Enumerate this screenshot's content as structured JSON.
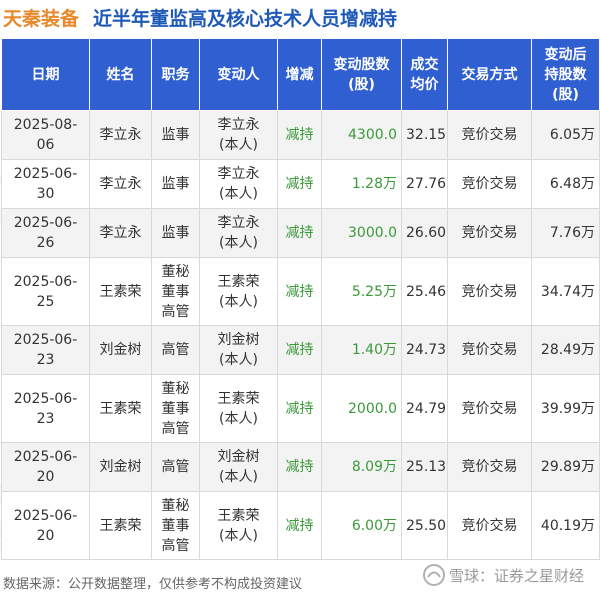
{
  "header": {
    "brand": "天秦装备",
    "title": "近半年董监高及核心技术人员增减持"
  },
  "table": {
    "columns": [
      "日期",
      "姓名",
      "职务",
      "变动人",
      "增减",
      "变动股数\n(股)",
      "成交\n均价",
      "交易方式",
      "变动后\n持股数\n(股)"
    ],
    "rows": [
      {
        "date": "2025-08-06",
        "name": "李立永",
        "position": [
          "监事"
        ],
        "changer": [
          "李立永",
          "(本人)"
        ],
        "direction": "减持",
        "shares": "4300.0",
        "price": "32.15",
        "method": "竞价交易",
        "after": "6.05万"
      },
      {
        "date": "2025-06-30",
        "name": "李立永",
        "position": [
          "监事"
        ],
        "changer": [
          "李立永",
          "(本人)"
        ],
        "direction": "减持",
        "shares": "1.28万",
        "price": "27.76",
        "method": "竞价交易",
        "after": "6.48万"
      },
      {
        "date": "2025-06-26",
        "name": "李立永",
        "position": [
          "监事"
        ],
        "changer": [
          "李立永",
          "(本人)"
        ],
        "direction": "减持",
        "shares": "3000.0",
        "price": "26.60",
        "method": "竞价交易",
        "after": "7.76万"
      },
      {
        "date": "2025-06-25",
        "name": "王素荣",
        "position": [
          "董秘",
          "董事",
          "高管"
        ],
        "changer": [
          "王素荣",
          "(本人)"
        ],
        "direction": "减持",
        "shares": "5.25万",
        "price": "25.46",
        "method": "竞价交易",
        "after": "34.74万"
      },
      {
        "date": "2025-06-23",
        "name": "刘金树",
        "position": [
          "高管"
        ],
        "changer": [
          "刘金树",
          "(本人)"
        ],
        "direction": "减持",
        "shares": "1.40万",
        "price": "24.73",
        "method": "竞价交易",
        "after": "28.49万"
      },
      {
        "date": "2025-06-23",
        "name": "王素荣",
        "position": [
          "董秘",
          "董事",
          "高管"
        ],
        "changer": [
          "王素荣",
          "(本人)"
        ],
        "direction": "减持",
        "shares": "2000.0",
        "price": "24.79",
        "method": "竞价交易",
        "after": "39.99万"
      },
      {
        "date": "2025-06-20",
        "name": "刘金树",
        "position": [
          "高管"
        ],
        "changer": [
          "刘金树",
          "(本人)"
        ],
        "direction": "减持",
        "shares": "8.09万",
        "price": "25.13",
        "method": "竞价交易",
        "after": "29.89万"
      },
      {
        "date": "2025-06-20",
        "name": "王素荣",
        "position": [
          "董秘",
          "董事",
          "高管"
        ],
        "changer": [
          "王素荣",
          "(本人)"
        ],
        "direction": "减持",
        "shares": "6.00万",
        "price": "25.50",
        "method": "竞价交易",
        "after": "40.19万"
      }
    ]
  },
  "footer": {
    "source": "数据来源：公开数据整理，仅供参考不构成投资建议",
    "logo_text": "雪球：证券之星财经"
  },
  "watermark": "证券之星",
  "colors": {
    "header_bg": "#2f5fd0",
    "brand": "#e8882b",
    "title": "#1d59b8",
    "decrease": "#3a9a3a"
  }
}
